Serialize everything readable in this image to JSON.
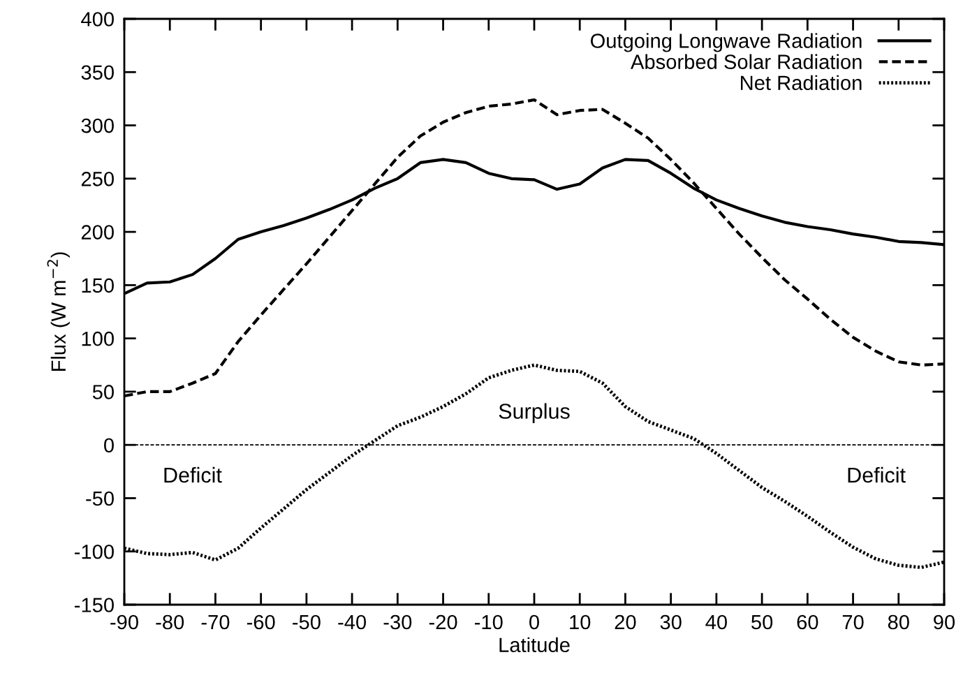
{
  "chart_data": {
    "type": "line",
    "xlabel": "Latitude",
    "ylabel": "Flux (W m$^{−2}$)",
    "x": [
      -90,
      -85,
      -80,
      -75,
      -70,
      -65,
      -60,
      -55,
      -50,
      -45,
      -40,
      -35,
      -30,
      -25,
      -20,
      -15,
      -10,
      -5,
      0,
      5,
      10,
      15,
      20,
      25,
      30,
      35,
      40,
      45,
      50,
      55,
      60,
      65,
      70,
      75,
      80,
      85,
      90
    ],
    "series": [
      {
        "name": "Outgoing Longwave Radiation",
        "color": "#000000",
        "line_style": "solid",
        "values": [
          142,
          152,
          153,
          160,
          175,
          193,
          200,
          206,
          213,
          221,
          230,
          241,
          250,
          265,
          268,
          265,
          255,
          250,
          249,
          240,
          245,
          260,
          268,
          267,
          255,
          241,
          230,
          222,
          215,
          209,
          205,
          202,
          198,
          195,
          191,
          190,
          188
        ]
      },
      {
        "name": "Absorbed Solar Radiation",
        "color": "#000000",
        "line_style": "dashed",
        "values": [
          46,
          50,
          50,
          58,
          67,
          97,
          122,
          146,
          170,
          195,
          220,
          245,
          270,
          290,
          303,
          312,
          318,
          320,
          324,
          310,
          314,
          315,
          302,
          288,
          268,
          246,
          222,
          198,
          176,
          155,
          137,
          118,
          101,
          88,
          78,
          75,
          76
        ]
      },
      {
        "name": "Net Radiation",
        "color": "#000000",
        "line_style": "dotted",
        "values": [
          -97,
          -102,
          -103,
          -101,
          -108,
          -97,
          -78,
          -60,
          -42,
          -26,
          -10,
          4,
          18,
          26,
          36,
          48,
          63,
          70,
          75,
          70,
          69,
          58,
          36,
          22,
          14,
          6,
          -8,
          -24,
          -40,
          -53,
          -67,
          -82,
          -96,
          -107,
          -113,
          -115,
          -110
        ]
      }
    ],
    "xlim": [
      -90,
      90
    ],
    "xticks": [
      -90,
      -80,
      -70,
      -60,
      -50,
      -40,
      -30,
      -20,
      -10,
      0,
      10,
      20,
      30,
      40,
      50,
      60,
      70,
      80,
      90
    ],
    "ylim": [
      -150,
      400
    ],
    "yticks": [
      -150,
      -100,
      -50,
      0,
      50,
      100,
      150,
      200,
      250,
      300,
      350,
      400
    ],
    "ref_lines": [
      {
        "axis": "y",
        "value": 0,
        "label": null,
        "line_style": "dashed",
        "color": "#000000"
      }
    ],
    "annotations": [
      "Surplus",
      "Deficit",
      "Deficit"
    ],
    "grid": false,
    "legend": "top right",
    "marker": "none"
  }
}
